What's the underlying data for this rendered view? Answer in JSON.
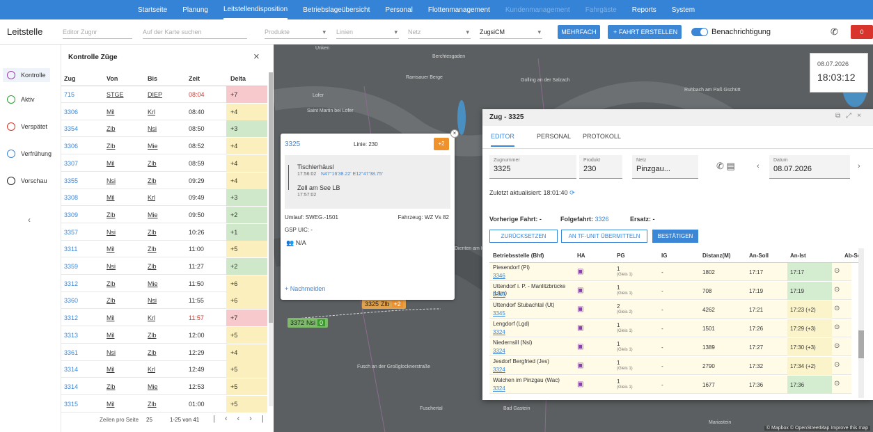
{
  "nav": {
    "items": [
      "Startseite",
      "Planung",
      "Leitstellendisposition",
      "Betriebslageübersicht",
      "Personal",
      "Flottenmanagement",
      "Kundenmanagement",
      "Fahrgäste",
      "Reports",
      "System"
    ]
  },
  "toolbar": {
    "title": "Leitstelle",
    "train_search": "Editor Zugnr",
    "map_search": "Auf der Karte suchen",
    "filters": [
      "Produkte",
      "Linien",
      "Netz",
      "ZugsiCM"
    ],
    "multi": "MEHRFACH",
    "create": "FAHRT ERSTELLEN",
    "notifications": "Benachrichtigung",
    "alerts": "0"
  },
  "sidebar": {
    "items": [
      "Kontrolle",
      "Aktiv",
      "Verspätet",
      "Verfrühung",
      "Vorschau"
    ]
  },
  "table": {
    "title": "Kontrolle Züge",
    "headers": [
      "Zug",
      "Von",
      "Bis",
      "Zeit",
      "Delta"
    ],
    "rows": [
      {
        "zug": "715",
        "von": "STGE",
        "bis": "DIEP",
        "zeit": "08:04",
        "delta": "+7",
        "color": "#f7c9cc"
      },
      {
        "zug": "3306",
        "von": "Mil",
        "bis": "Krl",
        "zeit": "08:40",
        "delta": "+4",
        "color": "#fbf0bd"
      },
      {
        "zug": "3354",
        "von": "Zlb",
        "bis": "Nsi",
        "zeit": "08:50",
        "delta": "+3",
        "color": "#cfe8c9"
      },
      {
        "zug": "3306",
        "von": "Zlb",
        "bis": "Mie",
        "zeit": "08:52",
        "delta": "+4",
        "color": "#fbf0bd"
      },
      {
        "zug": "3307",
        "von": "Mil",
        "bis": "Zlb",
        "zeit": "08:59",
        "delta": "+4",
        "color": "#fbf0bd"
      },
      {
        "zug": "3355",
        "von": "Nsi",
        "bis": "Zlb",
        "zeit": "09:29",
        "delta": "+4",
        "color": "#fbf0bd"
      },
      {
        "zug": "3308",
        "von": "Mil",
        "bis": "Krl",
        "zeit": "09:49",
        "delta": "+3",
        "color": "#cfe8c9"
      },
      {
        "zug": "3309",
        "von": "Zlb",
        "bis": "Mie",
        "zeit": "09:50",
        "delta": "+2",
        "color": "#cfe8c9"
      },
      {
        "zug": "3357",
        "von": "Nsi",
        "bis": "Zlb",
        "zeit": "10:26",
        "delta": "+1",
        "color": "#cfe8c9"
      },
      {
        "zug": "3311",
        "von": "Mil",
        "bis": "Zlb",
        "zeit": "11:00",
        "delta": "+5",
        "color": "#fbf0bd"
      },
      {
        "zug": "3359",
        "von": "Nsi",
        "bis": "Zlb",
        "zeit": "11:27",
        "delta": "+2",
        "color": "#cfe8c9"
      },
      {
        "zug": "3312",
        "von": "Zlb",
        "bis": "Mie",
        "zeit": "11:50",
        "delta": "+6",
        "color": "#fbf0bd"
      },
      {
        "zug": "3360",
        "von": "Zlb",
        "bis": "Nsi",
        "zeit": "11:55",
        "delta": "+6",
        "color": "#fbf0bd"
      },
      {
        "zug": "3312",
        "von": "Mil",
        "bis": "Krl",
        "zeit": "11:57",
        "delta": "+7",
        "color": "#f7c9cc"
      },
      {
        "zug": "3313",
        "von": "Mil",
        "bis": "Zlb",
        "zeit": "12:00",
        "delta": "+5",
        "color": "#fbf0bd"
      },
      {
        "zug": "3361",
        "von": "Nsi",
        "bis": "Zlb",
        "zeit": "12:29",
        "delta": "+4",
        "color": "#fbf0bd"
      },
      {
        "zug": "3314",
        "von": "Mil",
        "bis": "Krl",
        "zeit": "12:49",
        "delta": "+5",
        "color": "#fbf0bd"
      },
      {
        "zug": "3314",
        "von": "Zlb",
        "bis": "Mie",
        "zeit": "12:53",
        "delta": "+5",
        "color": "#fbf0bd"
      },
      {
        "zug": "3315",
        "von": "Mil",
        "bis": "Zlb",
        "zeit": "01:00",
        "delta": "+5",
        "color": "#fbf0bd"
      }
    ],
    "rows_per_page_label": "Zeilen pro Seite",
    "rows_per_page": "25",
    "range": "1-25 von 41"
  },
  "map": {
    "places": [
      "Unken",
      "Berchtesgaden",
      "Ramsauer Berge",
      "Golling an der Salzach",
      "Ruhbach am Paß Gschütt",
      "Lofer",
      "Saint Martin bei Lofer",
      "Dienten am Hochkönig",
      "Fusch an der Großglocknerstraße",
      "Bad Gastein",
      "Fuschertal",
      "Mariastein"
    ],
    "markers": [
      {
        "train": "3325",
        "station": "Zlb",
        "delta": "+2"
      },
      {
        "train": "3372",
        "station": "Nsi",
        "delta": "0"
      }
    ],
    "attribution": "© Mapbox © OpenStreetMap Improve this map"
  },
  "clock": {
    "date": "08.07.2026",
    "time": "18:03:12"
  },
  "popup": {
    "train": "3325",
    "delta": "+2",
    "line": "Linie: 230",
    "from": "Tischlerhäusl",
    "from_time": "17:56:02",
    "coords": "N47°16'38.22' E12°47'38.75'",
    "to": "Zell am See LB",
    "to_time": "17:57:02",
    "circulation": "Umlauf: SWEG.-1501",
    "vehicle": "Fahrzeug: WZ Vs 82",
    "uic": "GSP UIC: -",
    "staff": "N/A",
    "report": "+ Nachmelden"
  },
  "dialog": {
    "title": "Zug - 3325",
    "tabs": [
      "EDITOR",
      "PERSONAL",
      "PROTOKOLL"
    ],
    "fields": [
      {
        "label": "Zugnummer",
        "value": "3325"
      },
      {
        "label": "Produkt",
        "value": "230"
      },
      {
        "label": "Netz",
        "value": "Pinzgau..."
      },
      {
        "label": "Datum",
        "value": "08.07.2026"
      }
    ],
    "updated": "Zuletzt aktualisiert: 18:01:40",
    "previous": "Vorherige Fahrt: -",
    "next_label": "Folgefahrt:",
    "next": "3326",
    "replacement": "Ersatz: -",
    "buttons": [
      "ZURÜCKSETZEN",
      "AN TF-UNIT ÜBERMITTELN",
      "BESTÄTIGEN"
    ],
    "headers": [
      "Betriebsstelle (Bhf)",
      "HA",
      "PG",
      "IG",
      "Distanz(M)",
      "An-Soll",
      "An-Ist",
      "Ab-Soll"
    ],
    "stops": [
      {
        "name": "Piesendorf (Pi)",
        "train": "3346",
        "pg": "1",
        "gleis": "(Gleis 1)",
        "ig": "-",
        "distanz": "1802",
        "an_soll": "17:17",
        "an_ist": "17:17",
        "color": "#d4ecd0"
      },
      {
        "name": "Uttendorf i. P. - Manlitzbrücke (Utm)",
        "train": "3346",
        "pg": "1",
        "gleis": "(Gleis 1)",
        "ig": "-",
        "distanz": "708",
        "an_soll": "17:19",
        "an_ist": "17:19",
        "color": "#d4ecd0"
      },
      {
        "name": "Uttendorf Stubachtal (Ut)",
        "train": "3345",
        "pg": "2",
        "gleis": "(Gleis 2)",
        "ig": "-",
        "distanz": "4262",
        "an_soll": "17:21",
        "an_ist": "17:23 (+2)",
        "color": "#fbf3c9"
      },
      {
        "name": "Lengdorf (Lgd)",
        "train": "3324",
        "pg": "1",
        "gleis": "(Gleis 1)",
        "ig": "-",
        "distanz": "1501",
        "an_soll": "17:26",
        "an_ist": "17:29 (+3)",
        "color": "#fbf3c9"
      },
      {
        "name": "Niedernsill (Nsi)",
        "train": "3324",
        "pg": "1",
        "gleis": "(Gleis 1)",
        "ig": "-",
        "distanz": "1389",
        "an_soll": "17:27",
        "an_ist": "17:30 (+3)",
        "color": "#fbf3c9"
      },
      {
        "name": "Jesdorf Bergfried (Jes)",
        "train": "3324",
        "pg": "1",
        "gleis": "(Gleis 1)",
        "ig": "-",
        "distanz": "2790",
        "an_soll": "17:32",
        "an_ist": "17:34 (+2)",
        "color": "#fbf3c9"
      },
      {
        "name": "Walchen im Pinzgau (Wac)",
        "train": "3324",
        "pg": "1",
        "gleis": "(Gleis 1)",
        "ig": "-",
        "distanz": "1677",
        "an_soll": "17:36",
        "an_ist": "17:36",
        "color": "#d4ecd0"
      }
    ]
  }
}
